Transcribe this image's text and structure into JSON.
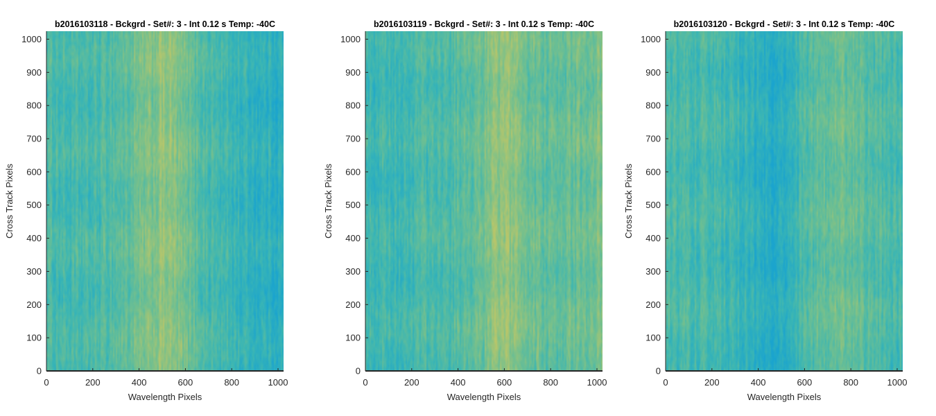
{
  "chart_data": [
    {
      "type": "heatmap",
      "title": "b2016103118 - Bckgrd - Set#: 3 - Int 0.12 s Temp: -40C",
      "xlabel": "Wavelength Pixels",
      "ylabel": "Cross Track Pixels",
      "xlim": [
        0,
        1024
      ],
      "ylim": [
        0,
        1024
      ],
      "xticks": [
        0,
        200,
        400,
        600,
        800,
        1000
      ],
      "yticks": [
        0,
        100,
        200,
        300,
        400,
        500,
        600,
        700,
        800,
        900,
        1000
      ],
      "colormap": [
        "#1aa4cf",
        "#3bb6b4",
        "#74c08e",
        "#b9c66a"
      ],
      "column_profile": {
        "x": [
          0,
          100,
          200,
          300,
          350,
          400,
          450,
          500,
          550,
          600,
          650,
          700,
          800,
          900,
          1000,
          1024
        ],
        "level": [
          0.45,
          0.38,
          0.4,
          0.5,
          0.55,
          0.62,
          0.7,
          0.8,
          0.75,
          0.62,
          0.52,
          0.42,
          0.32,
          0.24,
          0.2,
          0.2
        ]
      }
    },
    {
      "type": "heatmap",
      "title": "b2016103119 - Bckgrd - Set#: 3 - Int 0.12 s Temp: -40C",
      "xlabel": "Wavelength Pixels",
      "ylabel": "Cross Track Pixels",
      "xlim": [
        0,
        1024
      ],
      "ylim": [
        0,
        1024
      ],
      "xticks": [
        0,
        200,
        400,
        600,
        800,
        1000
      ],
      "yticks": [
        0,
        100,
        200,
        300,
        400,
        500,
        600,
        700,
        800,
        900,
        1000
      ],
      "colormap": [
        "#1aa4cf",
        "#3bb6b4",
        "#74c08e",
        "#b9c66a"
      ],
      "column_profile": {
        "x": [
          0,
          100,
          200,
          300,
          400,
          500,
          550,
          600,
          650,
          700,
          800,
          900,
          1000,
          1024
        ],
        "level": [
          0.38,
          0.35,
          0.38,
          0.42,
          0.48,
          0.62,
          0.74,
          0.82,
          0.74,
          0.62,
          0.55,
          0.6,
          0.68,
          0.66
        ]
      }
    },
    {
      "type": "heatmap",
      "title": "b2016103120 - Bckgrd - Set#: 3 - Int 0.12 s Temp: -40C",
      "xlabel": "Wavelength Pixels",
      "ylabel": "Cross Track Pixels",
      "xlim": [
        0,
        1024
      ],
      "ylim": [
        0,
        1024
      ],
      "xticks": [
        0,
        200,
        400,
        600,
        800,
        1000
      ],
      "yticks": [
        0,
        100,
        200,
        300,
        400,
        500,
        600,
        700,
        800,
        900,
        1000
      ],
      "colormap": [
        "#1aa4cf",
        "#3bb6b4",
        "#74c08e",
        "#b9c66a"
      ],
      "column_profile": {
        "x": [
          0,
          100,
          200,
          300,
          400,
          450,
          500,
          550,
          600,
          700,
          800,
          900,
          1000,
          1024
        ],
        "level": [
          0.45,
          0.42,
          0.4,
          0.32,
          0.18,
          0.12,
          0.15,
          0.25,
          0.45,
          0.58,
          0.6,
          0.5,
          0.4,
          0.4
        ]
      }
    }
  ]
}
